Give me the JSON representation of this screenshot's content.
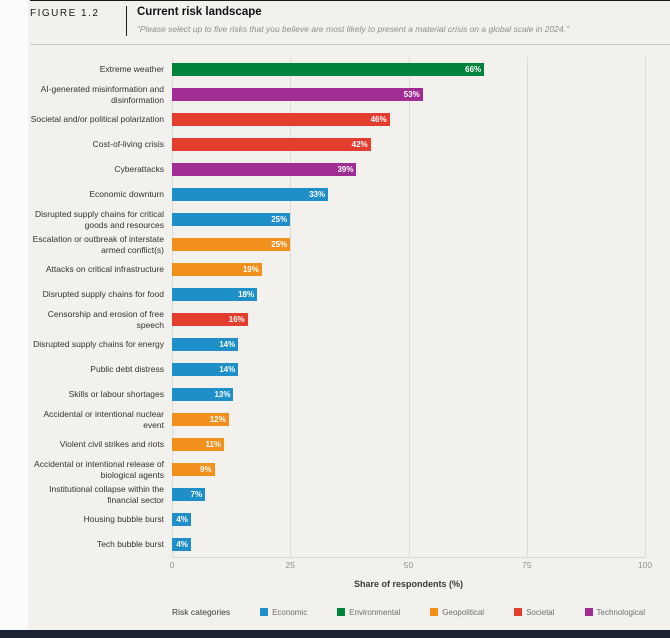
{
  "figure": {
    "label": "FIGURE 1.2",
    "title": "Current risk landscape",
    "subtitle": "“Please select up to five risks that you believe are most likely to present a material crisis on a global scale in 2024.”"
  },
  "chart_data": {
    "type": "bar",
    "orientation": "horizontal",
    "title": "Current risk landscape",
    "xlabel": "Share of respondents (%)",
    "xlim": [
      0,
      100
    ],
    "xticks": [
      0,
      25,
      50,
      75,
      100
    ],
    "grid": "vertical",
    "legend_position": "bottom",
    "rows": [
      {
        "label": "Extreme weather",
        "value": 66,
        "value_label": "66%",
        "category": "Environmental"
      },
      {
        "label": "AI-generated misinformation and disinformation",
        "value": 53,
        "value_label": "53%",
        "category": "Technological"
      },
      {
        "label": "Societal and/or political polarization",
        "value": 46,
        "value_label": "46%",
        "category": "Societal"
      },
      {
        "label": "Cost-of-living crisis",
        "value": 42,
        "value_label": "42%",
        "category": "Societal"
      },
      {
        "label": "Cyberattacks",
        "value": 39,
        "value_label": "39%",
        "category": "Technological"
      },
      {
        "label": "Economic downturn",
        "value": 33,
        "value_label": "33%",
        "category": "Economic"
      },
      {
        "label": "Disrupted supply chains for critical goods and resources",
        "value": 25,
        "value_label": "25%",
        "category": "Economic"
      },
      {
        "label": "Escalation or outbreak of interstate armed conflict(s)",
        "value": 25,
        "value_label": "25%",
        "category": "Geopolitical"
      },
      {
        "label": "Attacks on critical infrastructure",
        "value": 19,
        "value_label": "19%",
        "category": "Geopolitical"
      },
      {
        "label": "Disrupted supply chains for food",
        "value": 18,
        "value_label": "18%",
        "category": "Economic"
      },
      {
        "label": "Censorship and erosion of free speech",
        "value": 16,
        "value_label": "16%",
        "category": "Societal"
      },
      {
        "label": "Disrupted supply chains for energy",
        "value": 14,
        "value_label": "14%",
        "category": "Economic"
      },
      {
        "label": "Public debt distress",
        "value": 14,
        "value_label": "14%",
        "category": "Economic"
      },
      {
        "label": "Skills or labour shortages",
        "value": 13,
        "value_label": "13%",
        "category": "Economic"
      },
      {
        "label": "Accidental or intentional nuclear event",
        "value": 12,
        "value_label": "12%",
        "category": "Geopolitical"
      },
      {
        "label": "Violent civil strikes and riots",
        "value": 11,
        "value_label": "11%",
        "category": "Geopolitical"
      },
      {
        "label": "Accidental or intentional release of biological agents",
        "value": 9,
        "value_label": "9%",
        "category": "Geopolitical"
      },
      {
        "label": "Institutional collapse within the financial sector",
        "value": 7,
        "value_label": "7%",
        "category": "Economic"
      },
      {
        "label": "Housing bubble burst",
        "value": 4,
        "value_label": "4%",
        "category": "Economic"
      },
      {
        "label": "Tech bubble burst",
        "value": 4,
        "value_label": "4%",
        "category": "Economic"
      }
    ]
  },
  "legend": {
    "title": "Risk categories",
    "items": [
      {
        "label": "Economic",
        "color": "#1F8FCA"
      },
      {
        "label": "Environmental",
        "color": "#00843D"
      },
      {
        "label": "Geopolitical",
        "color": "#F2901E"
      },
      {
        "label": "Societal",
        "color": "#E43D30"
      },
      {
        "label": "Technological",
        "color": "#A02E92"
      }
    ]
  },
  "colors": {
    "Economic": "#1F8FCA",
    "Environmental": "#00843D",
    "Geopolitical": "#F2901E",
    "Societal": "#E43D30",
    "Technological": "#A02E92"
  }
}
